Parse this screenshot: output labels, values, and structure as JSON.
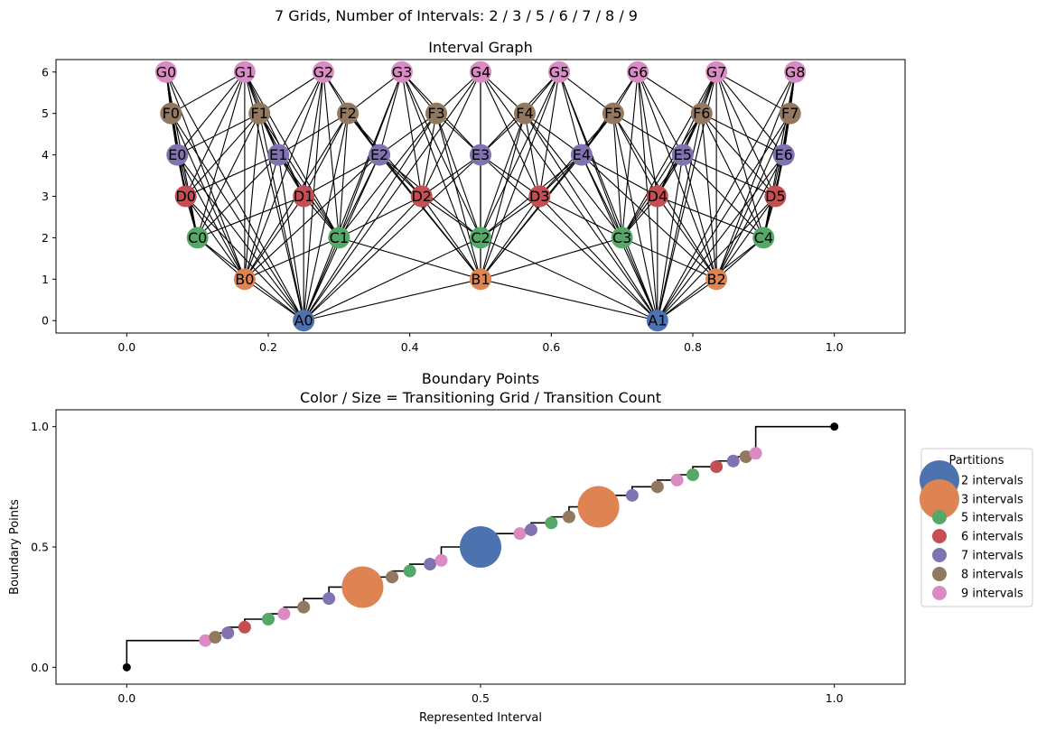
{
  "suptitle": "7 Grids, Number of Intervals: 2 / 3 / 5 / 6 / 7 / 8 / 9",
  "chart_data": [
    {
      "type": "network",
      "title": "Interval Graph",
      "xlim": [
        -0.1,
        1.1
      ],
      "ylim": [
        -0.3,
        6.3
      ],
      "xticks": [
        "0.0",
        "0.2",
        "0.4",
        "0.6",
        "0.8",
        "1.0"
      ],
      "yticks": [
        "0",
        "1",
        "2",
        "3",
        "4",
        "5",
        "6"
      ],
      "levels": [
        {
          "letter": "A",
          "n": 2,
          "y": 0,
          "color": "#4c72b0"
        },
        {
          "letter": "B",
          "n": 3,
          "y": 1,
          "color": "#dd8452"
        },
        {
          "letter": "C",
          "n": 5,
          "y": 2,
          "color": "#55a868"
        },
        {
          "letter": "D",
          "n": 6,
          "y": 3,
          "color": "#c44e52"
        },
        {
          "letter": "E",
          "n": 7,
          "y": 4,
          "color": "#8172b3"
        },
        {
          "letter": "F",
          "n": 8,
          "y": 5,
          "color": "#937860"
        },
        {
          "letter": "G",
          "n": 9,
          "y": 6,
          "color": "#da8bc3"
        }
      ],
      "node_labels": {
        "A": [
          "A0",
          "A1"
        ],
        "B": [
          "B0",
          "B1",
          "B2"
        ],
        "C": [
          "C0",
          "C1",
          "C2",
          "C3",
          "C4"
        ],
        "D": [
          "D0",
          "D1",
          "D2",
          "D3",
          "D4",
          "D5"
        ],
        "E": [
          "E0",
          "E1",
          "E2",
          "E3",
          "E4",
          "E5",
          "E6"
        ],
        "F": [
          "F0",
          "F1",
          "F2",
          "F3",
          "F4",
          "F5",
          "F6",
          "F7"
        ],
        "G": [
          "G0",
          "G1",
          "G2",
          "G3",
          "G4",
          "G5",
          "G6",
          "G7",
          "G8"
        ]
      }
    },
    {
      "type": "step-scatter",
      "title": "Boundary Points",
      "subtitle": "Color / Size = Transitioning Grid / Transition Count",
      "xlabel": "Represented Interval",
      "ylabel": "Boundary Points",
      "xlim": [
        -0.1,
        1.1
      ],
      "ylim": [
        -0.07,
        1.07
      ],
      "xticks": [
        "0.0",
        "0.5",
        "1.0"
      ],
      "yticks": [
        "0.0",
        "0.5",
        "1.0"
      ],
      "endpoints": [
        [
          0,
          0
        ],
        [
          1,
          1
        ]
      ],
      "legend_title": "Partitions",
      "legend_position": "right",
      "partitions": [
        {
          "n": 2,
          "label": "2 intervals",
          "color": "#4c72b0"
        },
        {
          "n": 3,
          "label": "3 intervals",
          "color": "#dd8452"
        },
        {
          "n": 5,
          "label": "5 intervals",
          "color": "#55a868"
        },
        {
          "n": 6,
          "label": "6 intervals",
          "color": "#c44e52"
        },
        {
          "n": 7,
          "label": "7 intervals",
          "color": "#8172b3"
        },
        {
          "n": 8,
          "label": "8 intervals",
          "color": "#937860"
        },
        {
          "n": 9,
          "label": "9 intervals",
          "color": "#da8bc3"
        }
      ]
    }
  ]
}
